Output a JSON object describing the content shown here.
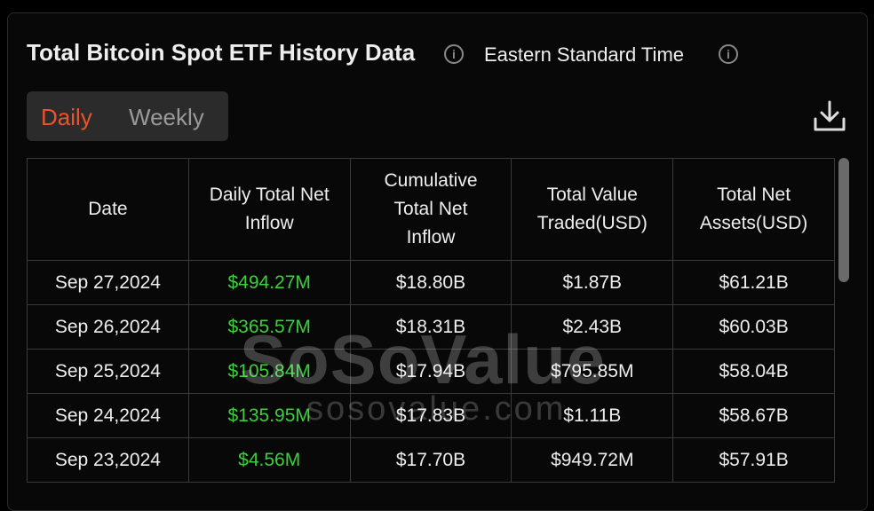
{
  "header": {
    "title": "Total Bitcoin Spot ETF History Data",
    "timezone": "Eastern Standard Time"
  },
  "tabs": [
    "Daily",
    "Weekly"
  ],
  "table": {
    "columns": [
      "Date",
      "Daily Total Net Inflow",
      "Cumulative Total Net Inflow",
      "Total Value Traded(USD)",
      "Total Net Assets(USD)"
    ],
    "rows": [
      [
        "Sep 27,2024",
        "$494.27M",
        "$18.80B",
        "$1.87B",
        "$61.21B"
      ],
      [
        "Sep 26,2024",
        "$365.57M",
        "$18.31B",
        "$2.43B",
        "$60.03B"
      ],
      [
        "Sep 25,2024",
        "$105.84M",
        "$17.94B",
        "$795.85M",
        "$58.04B"
      ],
      [
        "Sep 24,2024",
        "$135.95M",
        "$17.83B",
        "$1.11B",
        "$58.67B"
      ],
      [
        "Sep 23,2024",
        "$4.56M",
        "$17.70B",
        "$949.72M",
        "$57.91B"
      ]
    ]
  },
  "watermark": {
    "brand": "SoSoValue",
    "url": "sosovalue.com"
  }
}
